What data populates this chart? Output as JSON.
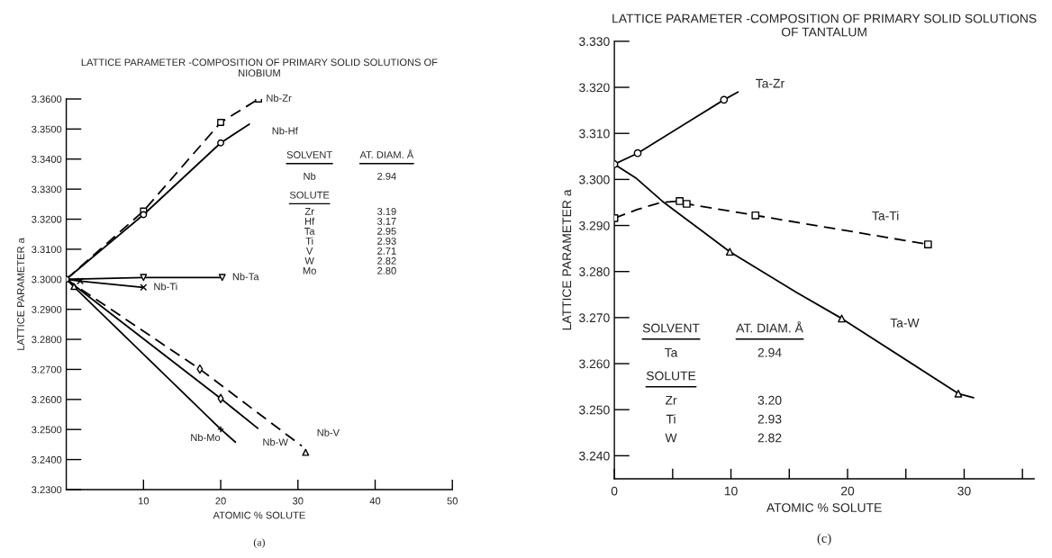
{
  "chart_data": [
    {
      "type": "line",
      "title": "LATTICE PARAMETER -COMPOSITION OF PRIMARY SOLID SOLUTIONS OF\nNIOBIUM",
      "xlabel": "ATOMIC % SOLUTE",
      "ylabel": "LATTICE PARAMETER a",
      "xlim": [
        0,
        50
      ],
      "xticks": [
        10,
        20,
        30,
        40,
        50
      ],
      "ylim": [
        3.23,
        3.36
      ],
      "yticks": [
        {
          "value": 3.23,
          "label": "3.2300"
        },
        {
          "value": 3.24,
          "label": "3.2400"
        },
        {
          "value": 3.25,
          "label": "3.2500"
        },
        {
          "value": 3.26,
          "label": "3.2600"
        },
        {
          "value": 3.27,
          "label": "3.2700"
        },
        {
          "value": 3.28,
          "label": "3.2800"
        },
        {
          "value": 3.29,
          "label": "3.2900"
        },
        {
          "value": 3.3,
          "label": "3.3000"
        },
        {
          "value": 3.31,
          "label": "3.3100"
        },
        {
          "value": 3.32,
          "label": "3.3200"
        },
        {
          "value": 3.33,
          "label": "3.3300"
        },
        {
          "value": 3.34,
          "label": "3.3400"
        },
        {
          "value": 3.35,
          "label": "3.3500"
        },
        {
          "value": 3.36,
          "label": "3.3600"
        }
      ],
      "grid": false,
      "legend": false,
      "series": [
        {
          "name": "Nb-Zr",
          "color": "#000000",
          "line_style": "dashed",
          "marker": "none",
          "x": [
            0,
            10,
            20,
            24.9
          ],
          "values": [
            3.3,
            3.3227,
            3.3522,
            3.36
          ]
        },
        {
          "type": "scatter",
          "color": "#000000",
          "marker": "square",
          "x": [
            10,
            20,
            24.9
          ],
          "values": [
            3.3227,
            3.3522,
            3.36
          ]
        },
        {
          "name": "Nb-Hf",
          "color": "#000000",
          "line_style": "solid",
          "marker": "none",
          "x": [
            0,
            10,
            20,
            23.7
          ],
          "values": [
            3.3,
            3.3215,
            3.3454,
            3.3516
          ]
        },
        {
          "type": "scatter",
          "color": "#000000",
          "marker": "circle",
          "x": [
            0,
            10,
            20
          ],
          "values": [
            3.3,
            3.3215,
            3.3454
          ]
        },
        {
          "name": "Nb-Ta",
          "color": "#000000",
          "line_style": "solid",
          "marker": "none",
          "x": [
            0,
            10,
            20.2
          ],
          "values": [
            3.3,
            3.3006,
            3.3006
          ]
        },
        {
          "type": "scatter",
          "color": "#000000",
          "marker": "triangle_down",
          "x": [
            10,
            20.2
          ],
          "values": [
            3.3006,
            3.3006
          ]
        },
        {
          "name": "Nb-Ti",
          "color": "#000000",
          "line_style": "solid",
          "marker": "none",
          "x": [
            0,
            1.8,
            10
          ],
          "values": [
            3.3,
            3.2994,
            3.2973
          ]
        },
        {
          "type": "scatter",
          "color": "#000000",
          "marker": "cross",
          "x": [
            1.8,
            10
          ],
          "values": [
            3.2994,
            3.2973
          ]
        },
        {
          "name": "Nb-V",
          "color": "#000000",
          "line_style": "dashed",
          "marker": "none",
          "x": [
            0,
            17.3,
            30.5
          ],
          "values": [
            3.3,
            3.2701,
            3.2445
          ]
        },
        {
          "type": "scatter",
          "color": "#000000",
          "marker": "triangle",
          "x": [
            1.0,
            31.0
          ],
          "values": [
            3.2976,
            3.2424
          ]
        },
        {
          "type": "scatter",
          "color": "#000000",
          "marker": "diamond",
          "x": [
            17.3
          ],
          "values": [
            3.2701
          ]
        },
        {
          "name": "Nb-W",
          "color": "#000000",
          "line_style": "solid",
          "marker": "none",
          "x": [
            0,
            20,
            24.8
          ],
          "values": [
            3.3,
            3.2603,
            3.2504
          ]
        },
        {
          "type": "scatter",
          "color": "#000000",
          "marker": "diamond",
          "x": [
            20
          ],
          "values": [
            3.2603
          ]
        },
        {
          "name": "Nb-Mo",
          "color": "#000000",
          "line_style": "solid",
          "marker": "none",
          "x": [
            0,
            20,
            21.9
          ],
          "values": [
            3.3,
            3.2501,
            3.2458
          ]
        },
        {
          "type": "scatter",
          "color": "#000000",
          "marker": "plus",
          "x": [
            20
          ],
          "values": [
            3.2501
          ]
        }
      ],
      "annotations": [
        "SOLVENT",
        "AT. DIAM. Å",
        "Nb",
        "2.94",
        "SOLUTE",
        "Zr",
        "3.19",
        "Hf",
        "3.17",
        "Ta",
        "2.95",
        "Ti",
        "2.93",
        "V",
        "2.71",
        "W",
        "2.82",
        "Mo",
        "2.80",
        "(a)"
      ]
    },
    {
      "type": "line",
      "title": "LATTICE PARAMETER -COMPOSITION OF PRIMARY SOLID SOLUTIONS\nOF TANTALUM",
      "xlabel": "ATOMIC % SOLUTE",
      "ylabel": "LATTICE PARAMETER a",
      "xlim": [
        0,
        36
      ],
      "xticks": [
        0,
        {
          "value": 5,
          "label": null
        },
        10,
        {
          "value": 15,
          "label": null
        },
        20,
        {
          "value": 25,
          "label": null
        },
        30,
        {
          "value": 35,
          "label": null
        }
      ],
      "ylim": [
        3.235,
        3.33
      ],
      "yticks": [
        {
          "value": 3.24,
          "label": "3.240"
        },
        {
          "value": 3.25,
          "label": "3.250"
        },
        {
          "value": 3.26,
          "label": "3.260"
        },
        {
          "value": 3.27,
          "label": "3.270"
        },
        {
          "value": 3.28,
          "label": "3.280"
        },
        {
          "value": 3.29,
          "label": "3.290"
        },
        {
          "value": 3.3,
          "label": "3.300"
        },
        {
          "value": 3.31,
          "label": "3.310"
        },
        {
          "value": 3.32,
          "label": "3.320"
        },
        {
          "value": 3.33,
          "label": "3.330"
        }
      ],
      "grid": false,
      "legend": false,
      "series": [
        {
          "name": "Ta-Zr",
          "color": "#000000",
          "line_style": "solid",
          "marker": "none",
          "x": [
            0,
            2.0,
            9.4,
            10.6
          ],
          "values": [
            3.3033,
            3.3057,
            3.3173,
            3.319
          ]
        },
        {
          "type": "scatter",
          "color": "#000000",
          "marker": "circle",
          "x": [
            0,
            2.0,
            9.4
          ],
          "values": [
            3.3033,
            3.3057,
            3.3173
          ]
        },
        {
          "name": "Ta-Ti",
          "color": "#000000",
          "line_style": "dashed",
          "marker": "none",
          "x": [
            0,
            2,
            4,
            5.6,
            6.2,
            12.1,
            26.9
          ],
          "values": [
            3.2916,
            3.2935,
            3.295,
            3.2953,
            3.2947,
            3.2922,
            3.2859
          ]
        },
        {
          "type": "scatter",
          "color": "#000000",
          "marker": "square",
          "x": [
            0,
            5.6,
            6.2,
            12.1,
            26.9
          ],
          "values": [
            3.2916,
            3.2953,
            3.2947,
            3.2922,
            3.2859
          ]
        },
        {
          "name": "Ta-W",
          "color": "#000000",
          "line_style": "solid",
          "marker": "none",
          "x": [
            0,
            1.9,
            4.1,
            9.9,
            15.6,
            19.5,
            29.5,
            30.8
          ],
          "values": [
            3.3033,
            3.3002,
            3.2953,
            3.2843,
            3.2755,
            3.2698,
            3.2535,
            3.2526
          ]
        },
        {
          "type": "scatter",
          "color": "#000000",
          "marker": "triangle",
          "x": [
            9.9,
            19.5,
            29.5
          ],
          "values": [
            3.2843,
            3.2698,
            3.2535
          ]
        }
      ],
      "annotations": [
        "SOLVENT",
        "AT. DIAM. Å",
        "Ta",
        "2.94",
        "SOLUTE",
        "Zr",
        "3.20",
        "Ti",
        "2.93",
        "W",
        "2.82",
        "(c)"
      ]
    }
  ]
}
